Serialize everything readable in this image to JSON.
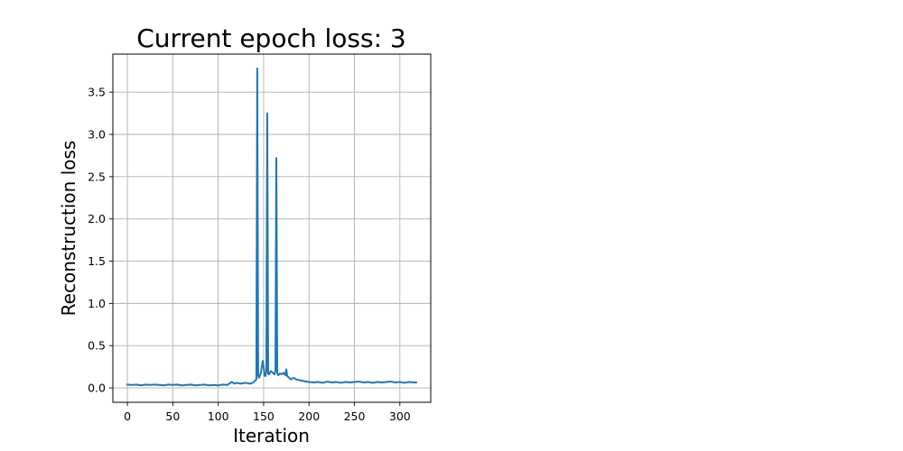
{
  "chart_data": {
    "type": "line",
    "title": "Current epoch loss: 3",
    "xlabel": "Iteration",
    "ylabel": "Reconstruction loss",
    "xlim": [
      -16,
      334
    ],
    "ylim": [
      -0.17,
      3.95
    ],
    "xticks": [
      0,
      50,
      100,
      150,
      200,
      250,
      300
    ],
    "yticks": [
      0.0,
      0.5,
      1.0,
      1.5,
      2.0,
      2.5,
      3.0,
      3.5
    ],
    "xtick_labels": [
      "0",
      "50",
      "100",
      "150",
      "200",
      "250",
      "300"
    ],
    "ytick_labels": [
      "0.0",
      "0.5",
      "1.0",
      "1.5",
      "2.0",
      "2.5",
      "3.0",
      "3.5"
    ],
    "grid": true,
    "series": [
      {
        "color": "#1f77b4",
        "x": [
          0,
          5,
          10,
          15,
          20,
          25,
          30,
          35,
          40,
          45,
          50,
          55,
          60,
          65,
          70,
          75,
          80,
          85,
          90,
          95,
          100,
          105,
          110,
          112,
          115,
          118,
          120,
          125,
          130,
          135,
          138,
          140,
          142,
          143,
          144,
          145,
          147,
          149,
          150,
          151,
          152,
          153,
          154,
          155,
          156,
          158,
          160,
          162,
          163,
          164,
          165,
          166,
          168,
          170,
          172,
          174,
          175,
          176,
          178,
          180,
          183,
          186,
          190,
          195,
          200,
          205,
          210,
          215,
          220,
          225,
          230,
          235,
          240,
          245,
          250,
          255,
          260,
          265,
          270,
          275,
          280,
          285,
          290,
          295,
          300,
          305,
          310,
          315,
          318
        ],
        "y": [
          0.04,
          0.035,
          0.04,
          0.03,
          0.04,
          0.035,
          0.04,
          0.035,
          0.03,
          0.04,
          0.035,
          0.04,
          0.03,
          0.035,
          0.04,
          0.03,
          0.035,
          0.04,
          0.03,
          0.035,
          0.03,
          0.04,
          0.035,
          0.05,
          0.07,
          0.05,
          0.06,
          0.05,
          0.06,
          0.05,
          0.06,
          0.08,
          0.1,
          3.78,
          0.15,
          0.12,
          0.18,
          0.32,
          0.25,
          0.15,
          0.14,
          0.2,
          3.25,
          0.17,
          0.16,
          0.2,
          0.18,
          0.16,
          0.2,
          2.72,
          0.18,
          0.15,
          0.17,
          0.16,
          0.18,
          0.15,
          0.22,
          0.14,
          0.12,
          0.1,
          0.12,
          0.1,
          0.09,
          0.08,
          0.07,
          0.065,
          0.07,
          0.06,
          0.075,
          0.065,
          0.07,
          0.06,
          0.07,
          0.065,
          0.07,
          0.075,
          0.065,
          0.07,
          0.06,
          0.07,
          0.065,
          0.07,
          0.075,
          0.065,
          0.07,
          0.06,
          0.07,
          0.065,
          0.065
        ]
      }
    ]
  }
}
